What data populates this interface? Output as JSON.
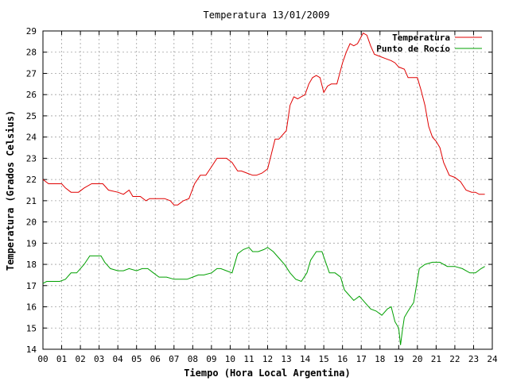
{
  "chart_data": {
    "type": "line",
    "title": "Temperatura 13/01/2009",
    "xlabel": "Tiempo (Hora Local Argentina)",
    "ylabel": "Temperatura (Grados Celsius)",
    "xlim": [
      0,
      24
    ],
    "ylim": [
      14,
      29
    ],
    "xticks": [
      "00",
      "01",
      "02",
      "03",
      "04",
      "05",
      "06",
      "07",
      "08",
      "09",
      "10",
      "11",
      "12",
      "13",
      "14",
      "15",
      "16",
      "17",
      "18",
      "19",
      "20",
      "21",
      "22",
      "23",
      "24"
    ],
    "yticks": [
      "14",
      "15",
      "16",
      "17",
      "18",
      "19",
      "20",
      "21",
      "22",
      "23",
      "24",
      "25",
      "26",
      "27",
      "28",
      "29"
    ],
    "grid": true,
    "legend_position": "top-right",
    "series": [
      {
        "name": "Temperatura",
        "color": "#e00000",
        "x": [
          0,
          0.3,
          0.6,
          1,
          1.2,
          1.5,
          1.9,
          2.2,
          2.6,
          3,
          3.2,
          3.5,
          4,
          4.3,
          4.6,
          4.8,
          5.2,
          5.5,
          5.7,
          6,
          6.5,
          6.8,
          7,
          7.2,
          7.5,
          7.8,
          8.1,
          8.4,
          8.7,
          9,
          9.3,
          9.6,
          9.8,
          10.1,
          10.4,
          10.6,
          10.9,
          11.2,
          11.4,
          11.7,
          12,
          12.2,
          12.4,
          12.6,
          13,
          13.2,
          13.4,
          13.6,
          14,
          14.2,
          14.4,
          14.6,
          14.8,
          15,
          15.2,
          15.4,
          15.7,
          16,
          16.2,
          16.4,
          16.6,
          16.8,
          17.1,
          17.3,
          17.5,
          17.7,
          18,
          18.3,
          18.6,
          18.8,
          19,
          19.3,
          19.5,
          19.8,
          20,
          20.2,
          20.4,
          20.6,
          20.8,
          21,
          21.2,
          21.4,
          21.7,
          22,
          22.3,
          22.6,
          22.9,
          23.1,
          23.3,
          23.6
        ],
        "values": [
          22.0,
          21.8,
          21.8,
          21.8,
          21.6,
          21.4,
          21.4,
          21.6,
          21.8,
          21.8,
          21.8,
          21.5,
          21.4,
          21.3,
          21.5,
          21.2,
          21.2,
          21.0,
          21.1,
          21.1,
          21.1,
          21.0,
          20.8,
          20.8,
          21.0,
          21.1,
          21.8,
          22.2,
          22.2,
          22.6,
          23.0,
          23.0,
          23.0,
          22.8,
          22.4,
          22.4,
          22.3,
          22.2,
          22.2,
          22.3,
          22.5,
          23.2,
          23.9,
          23.9,
          24.3,
          25.5,
          25.9,
          25.8,
          26.0,
          26.5,
          26.8,
          26.9,
          26.8,
          26.1,
          26.4,
          26.5,
          26.5,
          27.5,
          28.0,
          28.4,
          28.3,
          28.4,
          28.9,
          28.8,
          28.3,
          27.9,
          27.8,
          27.7,
          27.6,
          27.5,
          27.3,
          27.2,
          26.8,
          26.8,
          26.8,
          26.2,
          25.5,
          24.5,
          24.0,
          23.8,
          23.5,
          22.8,
          22.2,
          22.1,
          21.9,
          21.5,
          21.4,
          21.4,
          21.3,
          21.3
        ]
      },
      {
        "name": "Punto de Rocío",
        "color": "#00a000",
        "x": [
          0,
          0.2,
          0.5,
          0.9,
          1.2,
          1.5,
          1.8,
          2.2,
          2.5,
          2.8,
          3.1,
          3.3,
          3.6,
          4,
          4.3,
          4.6,
          5,
          5.3,
          5.6,
          5.9,
          6.2,
          6.6,
          7,
          7.3,
          7.7,
          8,
          8.3,
          8.6,
          9,
          9.3,
          9.5,
          9.8,
          10.1,
          10.4,
          10.7,
          11,
          11.2,
          11.5,
          11.8,
          12,
          12.3,
          12.6,
          12.9,
          13.2,
          13.5,
          13.8,
          14.1,
          14.3,
          14.6,
          14.9,
          15.1,
          15.3,
          15.6,
          15.9,
          16.1,
          16.3,
          16.6,
          16.9,
          17.2,
          17.5,
          17.8,
          18.1,
          18.4,
          18.6,
          18.8,
          19,
          19.1,
          19.2,
          19.3,
          19.5,
          19.8,
          20.1,
          20.4,
          20.8,
          21.2,
          21.6,
          22,
          22.4,
          22.8,
          23.1,
          23.4,
          23.6
        ],
        "values": [
          17.1,
          17.2,
          17.2,
          17.2,
          17.3,
          17.6,
          17.6,
          18.0,
          18.4,
          18.4,
          18.4,
          18.1,
          17.8,
          17.7,
          17.7,
          17.8,
          17.7,
          17.8,
          17.8,
          17.6,
          17.4,
          17.4,
          17.3,
          17.3,
          17.3,
          17.4,
          17.5,
          17.5,
          17.6,
          17.8,
          17.8,
          17.7,
          17.6,
          18.5,
          18.7,
          18.8,
          18.6,
          18.6,
          18.7,
          18.8,
          18.6,
          18.3,
          18.0,
          17.6,
          17.3,
          17.2,
          17.6,
          18.2,
          18.6,
          18.6,
          18.1,
          17.6,
          17.6,
          17.4,
          16.8,
          16.6,
          16.3,
          16.5,
          16.2,
          15.9,
          15.8,
          15.6,
          15.9,
          16.0,
          15.3,
          15.0,
          14.2,
          14.9,
          15.5,
          15.8,
          16.2,
          17.8,
          18.0,
          18.1,
          18.1,
          17.9,
          17.9,
          17.8,
          17.6,
          17.6,
          17.8,
          17.9
        ]
      }
    ]
  }
}
